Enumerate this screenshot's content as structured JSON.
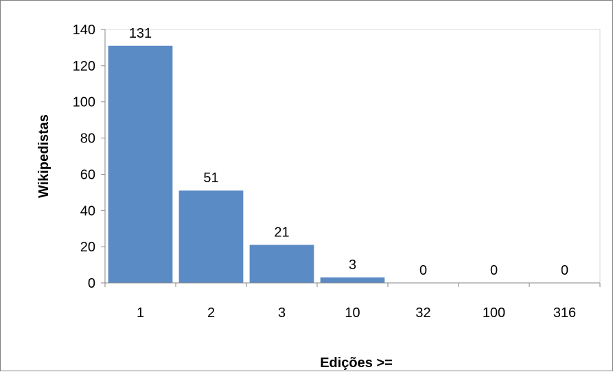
{
  "chart_data": {
    "type": "bar",
    "title": "",
    "xlabel": "Edições >=",
    "ylabel": "Wikipedistas",
    "categories": [
      "1",
      "2",
      "3",
      "10",
      "32",
      "100",
      "316"
    ],
    "values": [
      131,
      51,
      21,
      3,
      0,
      0,
      0
    ],
    "data_labels": [
      "131",
      "51",
      "21",
      "3",
      "0",
      "0",
      "0"
    ],
    "ylim": [
      0,
      140
    ],
    "yticks": [
      0,
      20,
      40,
      60,
      80,
      100,
      120,
      140
    ],
    "grid": false,
    "legend": "none",
    "bar_color": "#5b8bc5"
  }
}
